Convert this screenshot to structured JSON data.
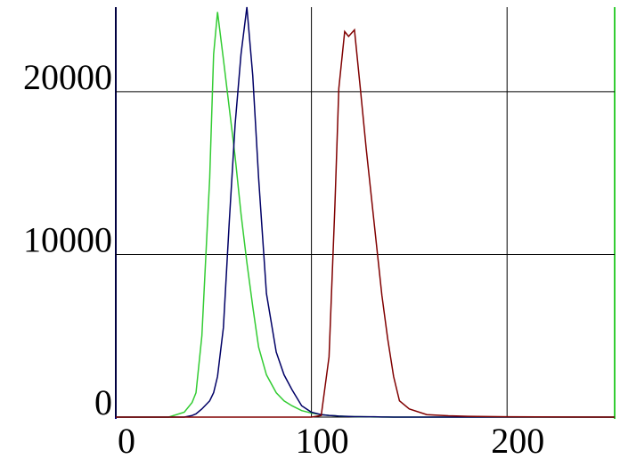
{
  "chart_data": {
    "type": "line",
    "x": [
      0,
      20,
      27,
      35,
      39,
      41,
      44,
      48,
      50,
      52,
      55,
      58,
      61,
      64,
      67,
      70,
      73,
      77,
      82,
      86,
      90,
      95,
      100,
      105,
      109,
      112,
      114,
      117,
      119,
      122,
      125,
      128,
      132,
      136,
      139,
      142,
      145,
      150,
      159,
      170,
      180,
      200,
      255
    ],
    "series": [
      {
        "color": "#33cc33",
        "values": [
          0,
          0,
          0,
          300,
          900,
          1500,
          5000,
          14700,
          22300,
          24900,
          22000,
          19000,
          16000,
          12500,
          9500,
          6800,
          4300,
          2600,
          1500,
          1000,
          700,
          400,
          250,
          150,
          100,
          80,
          60,
          50,
          40,
          30,
          20,
          20,
          10,
          10,
          0,
          0,
          0,
          0,
          0,
          0,
          0,
          0,
          0
        ]
      },
      {
        "color": "#000066",
        "values": [
          0,
          0,
          0,
          0,
          100,
          200,
          500,
          1000,
          1500,
          2500,
          5500,
          12000,
          18000,
          22300,
          25200,
          21000,
          14700,
          7600,
          4000,
          2600,
          1700,
          700,
          300,
          150,
          100,
          80,
          60,
          50,
          40,
          30,
          30,
          20,
          20,
          10,
          10,
          0,
          0,
          0,
          0,
          0,
          0,
          0,
          0
        ]
      },
      {
        "color": "#800000",
        "values": [
          0,
          0,
          0,
          0,
          0,
          0,
          0,
          0,
          0,
          0,
          0,
          0,
          0,
          0,
          0,
          0,
          0,
          0,
          0,
          0,
          0,
          0,
          0,
          100,
          3700,
          13000,
          20200,
          23700,
          23400,
          23800,
          20200,
          16500,
          12000,
          7500,
          4800,
          2500,
          1000,
          500,
          150,
          80,
          50,
          20,
          0
        ]
      }
    ],
    "xlim": [
      0,
      255
    ],
    "xticks": [
      0,
      100,
      200
    ],
    "ylim": [
      0,
      25200
    ],
    "yticks": [
      0,
      10000,
      20000
    ],
    "grid": true
  }
}
